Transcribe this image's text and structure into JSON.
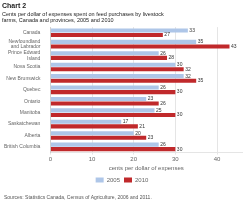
{
  "chart_data": {
    "type": "bar",
    "orientation": "horizontal",
    "title": "Chart 2",
    "subtitle": [
      "Cents per dollar of expenses spent on feed purchases by livestock",
      "farms, Canada and provinces, 2005 and 2010"
    ],
    "annotations": [
      "Sources: Statistics Canada, Census of Agriculture, 2006 and 2011."
    ],
    "categories": [
      "Canada",
      "Newfoundland\nand Labrador",
      "Prince Edward\nIsland",
      "Nova Scotia",
      "New Brunswick",
      "Quebec",
      "Ontario",
      "Manitoba",
      "Saskatchewan",
      "Alberta",
      "British Columbia"
    ],
    "series": [
      {
        "name": "2005",
        "color": "#aec6e8",
        "values": [
          33,
          35,
          26,
          30,
          32,
          26,
          23,
          25,
          17,
          20,
          26
        ]
      },
      {
        "name": "2010",
        "color": "#c0292b",
        "values": [
          27,
          43,
          28,
          32,
          35,
          30,
          26,
          30,
          21,
          23,
          30
        ]
      }
    ],
    "xlabel": "cents per dollar of expenses",
    "xlim": [
      0,
      46
    ],
    "xticks": [
      0,
      10,
      20,
      30,
      40
    ],
    "grid": true,
    "legend": "bottom",
    "data_labels": true
  }
}
